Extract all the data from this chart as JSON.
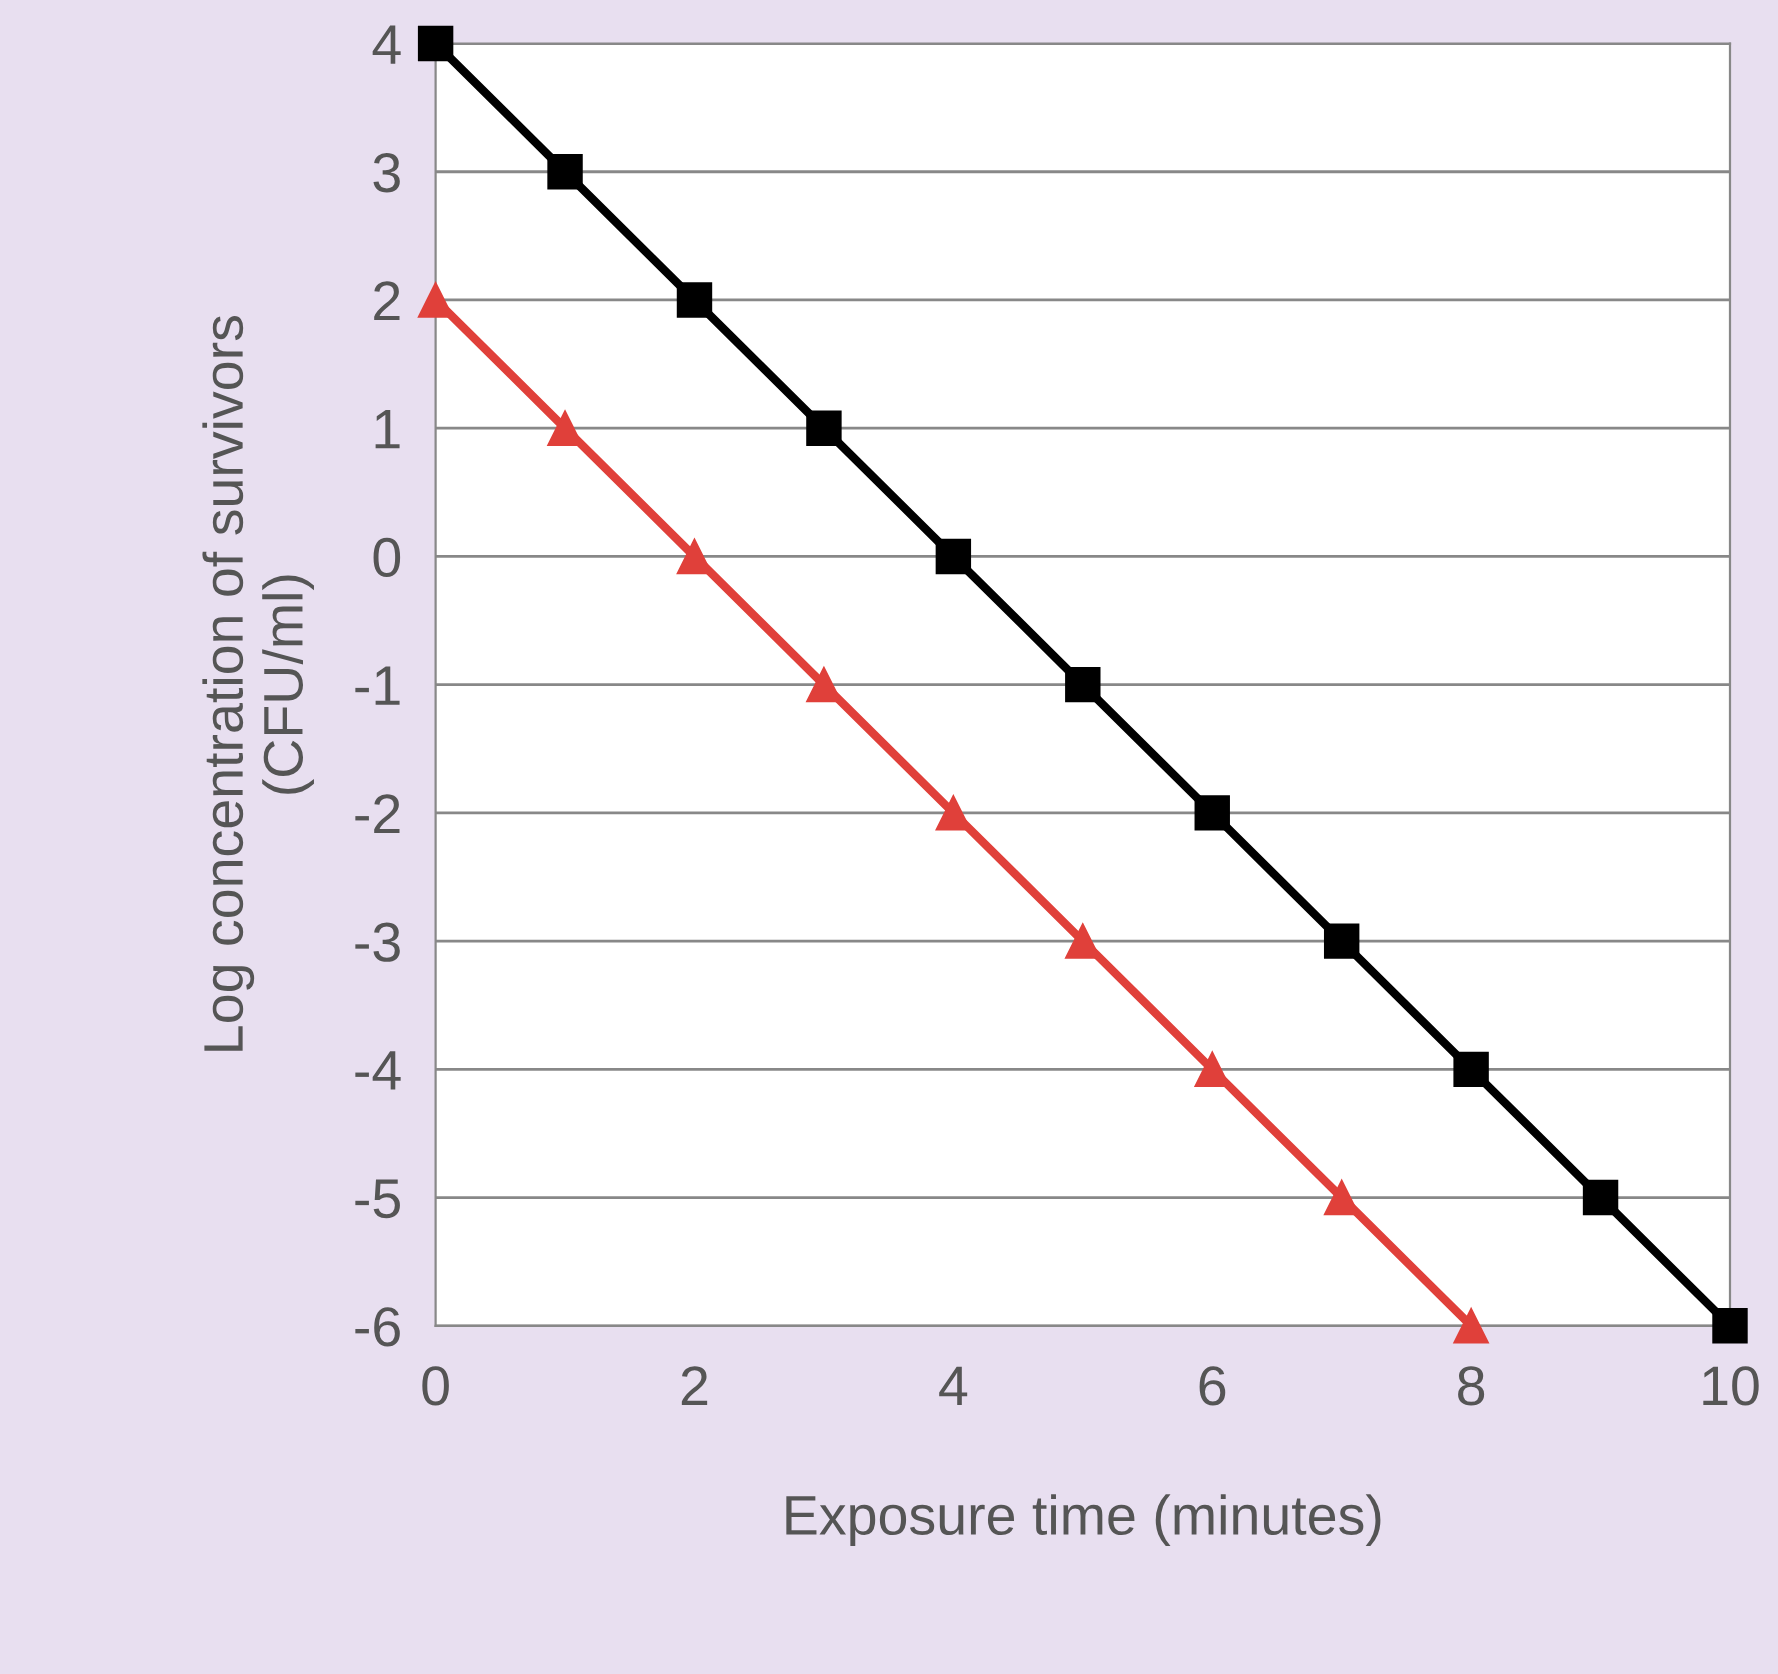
{
  "chart_data": {
    "type": "line",
    "xlabel": "Exposure time (minutes)",
    "ylabel": "Log concentration of survivors\n(CFU/ml)",
    "xlim": [
      0,
      10
    ],
    "ylim": [
      -6,
      4
    ],
    "xticks": [
      0,
      2,
      4,
      6,
      8,
      10
    ],
    "yticks": [
      -6,
      -5,
      -4,
      -3,
      -2,
      -1,
      0,
      1,
      2,
      3,
      4
    ],
    "grid": "y",
    "line_style": "solid",
    "series": [
      {
        "color": "#000000",
        "marker": "square",
        "x": [
          0,
          1,
          2,
          3,
          4,
          5,
          6,
          7,
          8,
          9,
          10
        ],
        "values": [
          4,
          3,
          2,
          1,
          0,
          -1,
          -2,
          -3,
          -4,
          -5,
          -6
        ]
      },
      {
        "color": "#e0403a",
        "marker": "triangle",
        "x": [
          0,
          1,
          2,
          3,
          4,
          5,
          6,
          7,
          8
        ],
        "values": [
          2,
          1,
          0,
          -1,
          -2,
          -3,
          -4,
          -5,
          -6
        ]
      }
    ]
  }
}
